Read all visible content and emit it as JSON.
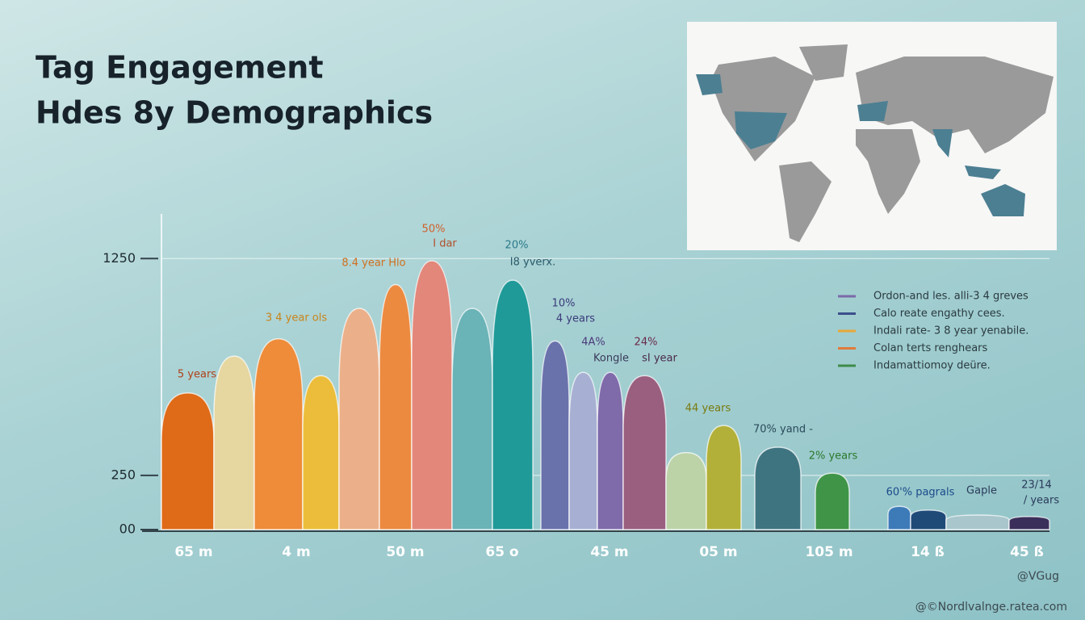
{
  "chart_data": {
    "type": "hump",
    "title": "Tag Engagement",
    "subtitle": "Hdes 8y Demographics",
    "categories": [
      null,
      null,
      null,
      null,
      null,
      null,
      null,
      null,
      null,
      null,
      null,
      null,
      null,
      null,
      null,
      null,
      null,
      null,
      null,
      null,
      null
    ],
    "values": [
      630,
      800,
      880,
      710,
      1020,
      1130,
      1240,
      1020,
      1150,
      870,
      725,
      725,
      710,
      355,
      480,
      380,
      260,
      107,
      90,
      67,
      60
    ],
    "colors": [
      "#df6a18",
      "#e6d6a0",
      "#ee8c3a",
      "#ecbd3a",
      "#ebb08a",
      "#ec8a40",
      "#e3877a",
      "#6ab3b7",
      "#1f9a98",
      "#6a72ac",
      "#a7b0d2",
      "#7f6aaa",
      "#9a5e7e",
      "#bcd3a8",
      "#b2b038",
      "#3e7480",
      "#3f9448",
      "#3d7ab8",
      "#1f4a78",
      "#a9c6cc",
      "#3a2f5a"
    ],
    "ylim": [
      0,
      1400
    ],
    "yticks": [
      {
        "value": 0,
        "label": "00"
      },
      250,
      1250
    ],
    "grid": true,
    "xlabels": [
      "65 m",
      "4 m",
      "50 m",
      "65 o",
      "45 m",
      "05 m",
      "105 m",
      "14 ß",
      "45 ß"
    ],
    "annotations": [
      {
        "text": "5 years",
        "color": "#b0401a"
      },
      {
        "text": "3 4 year ols",
        "color": "#c8841a"
      },
      {
        "text": "8.4 year Hlo",
        "color": "#d07020"
      },
      {
        "text": "50%",
        "color": "#d0602a"
      },
      {
        "text": "I dar",
        "color": "#b0502a"
      },
      {
        "text": "20%",
        "color": "#2a7a8a"
      },
      {
        "text": "I8 yverx.",
        "color": "#2a5a6a"
      },
      {
        "text": "10%",
        "color": "#3a3a7a"
      },
      {
        "text": "4 years",
        "color": "#3a3a7a"
      },
      {
        "text": "4A%",
        "color": "#4a3a7a"
      },
      {
        "text": "Kongle",
        "color": "#3a3a5a"
      },
      {
        "text": "24%",
        "color": "#6a2a4a"
      },
      {
        "text": "sI year",
        "color": "#4a2a4a"
      },
      {
        "text": "44 years",
        "color": "#7a7a10"
      },
      {
        "text": "70% yand -",
        "color": "#2a4a5a"
      },
      {
        "text": "2% years",
        "color": "#2a7a2a"
      },
      {
        "text": "60'% pagrals",
        "color": "#1a4a8a"
      },
      {
        "text": "Gaple",
        "color": "#2a3a5a"
      },
      {
        "text": "23/14",
        "color": "#2a3a5a"
      },
      {
        "text": "/ years",
        "color": "#2a3a5a"
      }
    ],
    "legend": [
      {
        "name": "Ordon-and les. alli-3 4 greves",
        "color": "#7a6aa8"
      },
      {
        "name": "Calo reate engathy cees.",
        "color": "#3b4f8a"
      },
      {
        "name": "Indali rate- 3 8 year yenabile.",
        "color": "#e8a838"
      },
      {
        "name": "Colan terts renghears",
        "color": "#e07b3a"
      },
      {
        "name": "Indamattiomoy deüre.",
        "color": "#3f8a4a"
      }
    ],
    "watermarks": [
      "@VGug",
      "@©Nordlvalnge.ratea.com"
    ]
  }
}
